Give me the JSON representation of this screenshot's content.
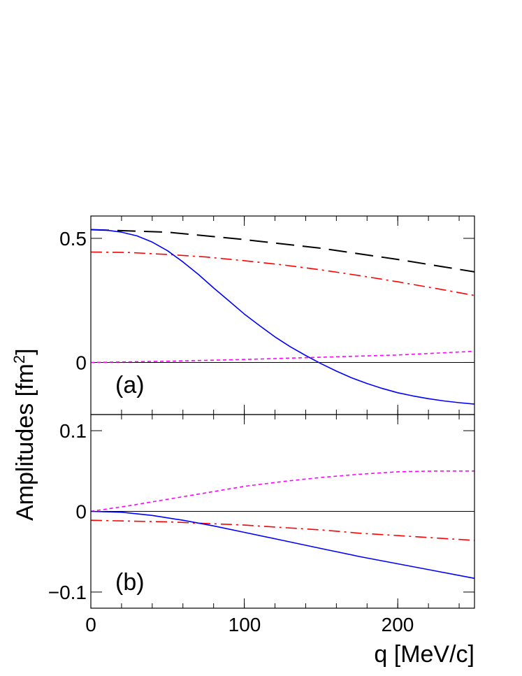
{
  "chart_data": {
    "type": "line",
    "ylabel": "Amplitudes [fm",
    "ylabel_sup": "2",
    "ylabel_close": "]",
    "xlabel": "q [MeV/c]",
    "xlim": [
      0,
      250
    ],
    "x_ticks": [
      "0",
      "100",
      "200"
    ],
    "panels": [
      {
        "label": "(a)",
        "ylim": [
          -0.21,
          0.59
        ],
        "y_ticks": [
          {
            "value": 0.5,
            "label": "0.5"
          },
          {
            "value": 0,
            "label": "0"
          }
        ],
        "series": [
          {
            "color": "#000000",
            "style": "dashed",
            "x": [
              0,
              50,
              100,
              150,
              200,
              250
            ],
            "y": [
              0.535,
              0.525,
              0.495,
              0.46,
              0.415,
              0.365
            ]
          },
          {
            "color": "#ff0000",
            "style": "dashdot",
            "x": [
              0,
              25,
              50,
              75,
              100,
              125,
              150,
              175,
              200,
              225,
              250
            ],
            "y": [
              0.445,
              0.443,
              0.435,
              0.425,
              0.41,
              0.393,
              0.373,
              0.35,
              0.325,
              0.298,
              0.27
            ]
          },
          {
            "color": "#0000ff",
            "style": "solid",
            "x": [
              0,
              10,
              20,
              30,
              40,
              50,
              60,
              70,
              80,
              90,
              100,
              110,
              120,
              130,
              140,
              150,
              160,
              170,
              180,
              190,
              200,
              210,
              220,
              230,
              240,
              250
            ],
            "y": [
              0.535,
              0.533,
              0.525,
              0.51,
              0.485,
              0.45,
              0.405,
              0.355,
              0.3,
              0.248,
              0.195,
              0.148,
              0.103,
              0.063,
              0.028,
              -0.005,
              -0.035,
              -0.062,
              -0.085,
              -0.105,
              -0.122,
              -0.135,
              -0.146,
              -0.155,
              -0.162,
              -0.168
            ]
          },
          {
            "color": "#ff00ff",
            "style": "dotted",
            "x": [
              0,
              50,
              100,
              150,
              200,
              250
            ],
            "y": [
              0.0,
              0.005,
              0.012,
              0.021,
              0.03,
              0.045
            ]
          }
        ]
      },
      {
        "label": "(b)",
        "ylim": [
          -0.12,
          0.12
        ],
        "y_ticks": [
          {
            "value": 0.1,
            "label": "0.1"
          },
          {
            "value": 0,
            "label": "0"
          },
          {
            "value": -0.1,
            "label": "−0.1"
          }
        ],
        "series": [
          {
            "color": "#ff00ff",
            "style": "dotted",
            "x": [
              0,
              25,
              50,
              75,
              100,
              125,
              150,
              175,
              200,
              225,
              250
            ],
            "y": [
              0.0,
              0.007,
              0.015,
              0.023,
              0.031,
              0.037,
              0.042,
              0.046,
              0.049,
              0.05,
              0.05
            ]
          },
          {
            "color": "#ff0000",
            "style": "dashdot",
            "x": [
              0,
              25,
              50,
              75,
              100,
              125,
              150,
              175,
              200,
              225,
              250
            ],
            "y": [
              -0.011,
              -0.012,
              -0.013,
              -0.015,
              -0.017,
              -0.02,
              -0.023,
              -0.027,
              -0.03,
              -0.033,
              -0.036
            ]
          },
          {
            "color": "#0000ff",
            "style": "solid",
            "x": [
              0,
              20,
              40,
              60,
              80,
              100,
              125,
              150,
              175,
              200,
              225,
              250
            ],
            "y": [
              0.0,
              -0.001,
              -0.005,
              -0.011,
              -0.018,
              -0.026,
              -0.036,
              -0.046,
              -0.056,
              -0.065,
              -0.074,
              -0.083
            ]
          }
        ]
      }
    ]
  }
}
